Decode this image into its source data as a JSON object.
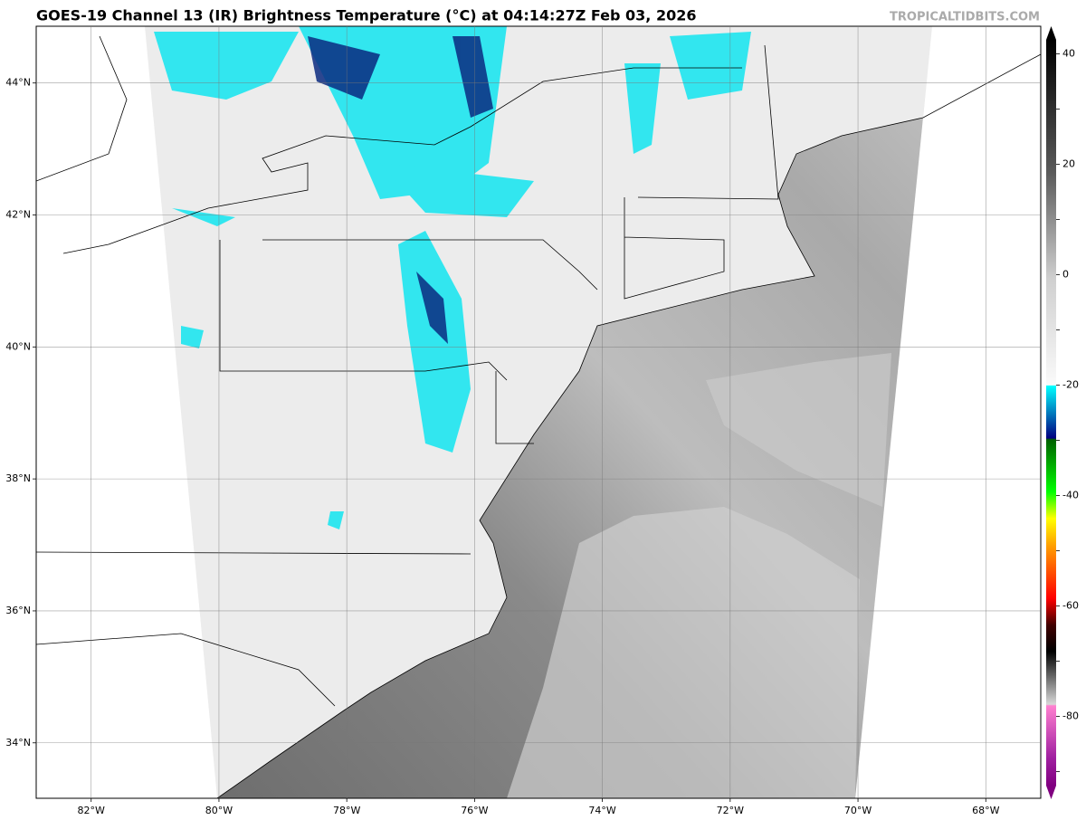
{
  "map": {
    "title": "GOES-19 Channel 13 (IR) Brightness Temperature (°C) at 04:14:27Z Feb 03, 2026",
    "watermark": "TROPICALTIDBITS.COM",
    "lon_range": [
      -82.86,
      -67.14
    ],
    "lat_range": [
      33.16,
      44.86
    ],
    "lat_ticks": [
      {
        "value": 44,
        "label": "44°N"
      },
      {
        "value": 42,
        "label": "42°N"
      },
      {
        "value": 40,
        "label": "40°N"
      },
      {
        "value": 38,
        "label": "38°N"
      },
      {
        "value": 36,
        "label": "36°N"
      },
      {
        "value": 34,
        "label": "34°N"
      }
    ],
    "lon_ticks": [
      {
        "value": -82,
        "label": "82°W"
      },
      {
        "value": -80,
        "label": "80°W"
      },
      {
        "value": -78,
        "label": "78°W"
      },
      {
        "value": -76,
        "label": "76°W"
      },
      {
        "value": -74,
        "label": "74°W"
      },
      {
        "value": -72,
        "label": "72°W"
      },
      {
        "value": -70,
        "label": "70°W"
      },
      {
        "value": -68,
        "label": "68°W"
      }
    ],
    "colorbar": {
      "range": [
        -95,
        45
      ],
      "ticks": [
        40,
        30,
        20,
        10,
        0,
        -10,
        -20,
        -30,
        -40,
        -50,
        -60,
        -70,
        -80,
        -90
      ]
    }
  }
}
